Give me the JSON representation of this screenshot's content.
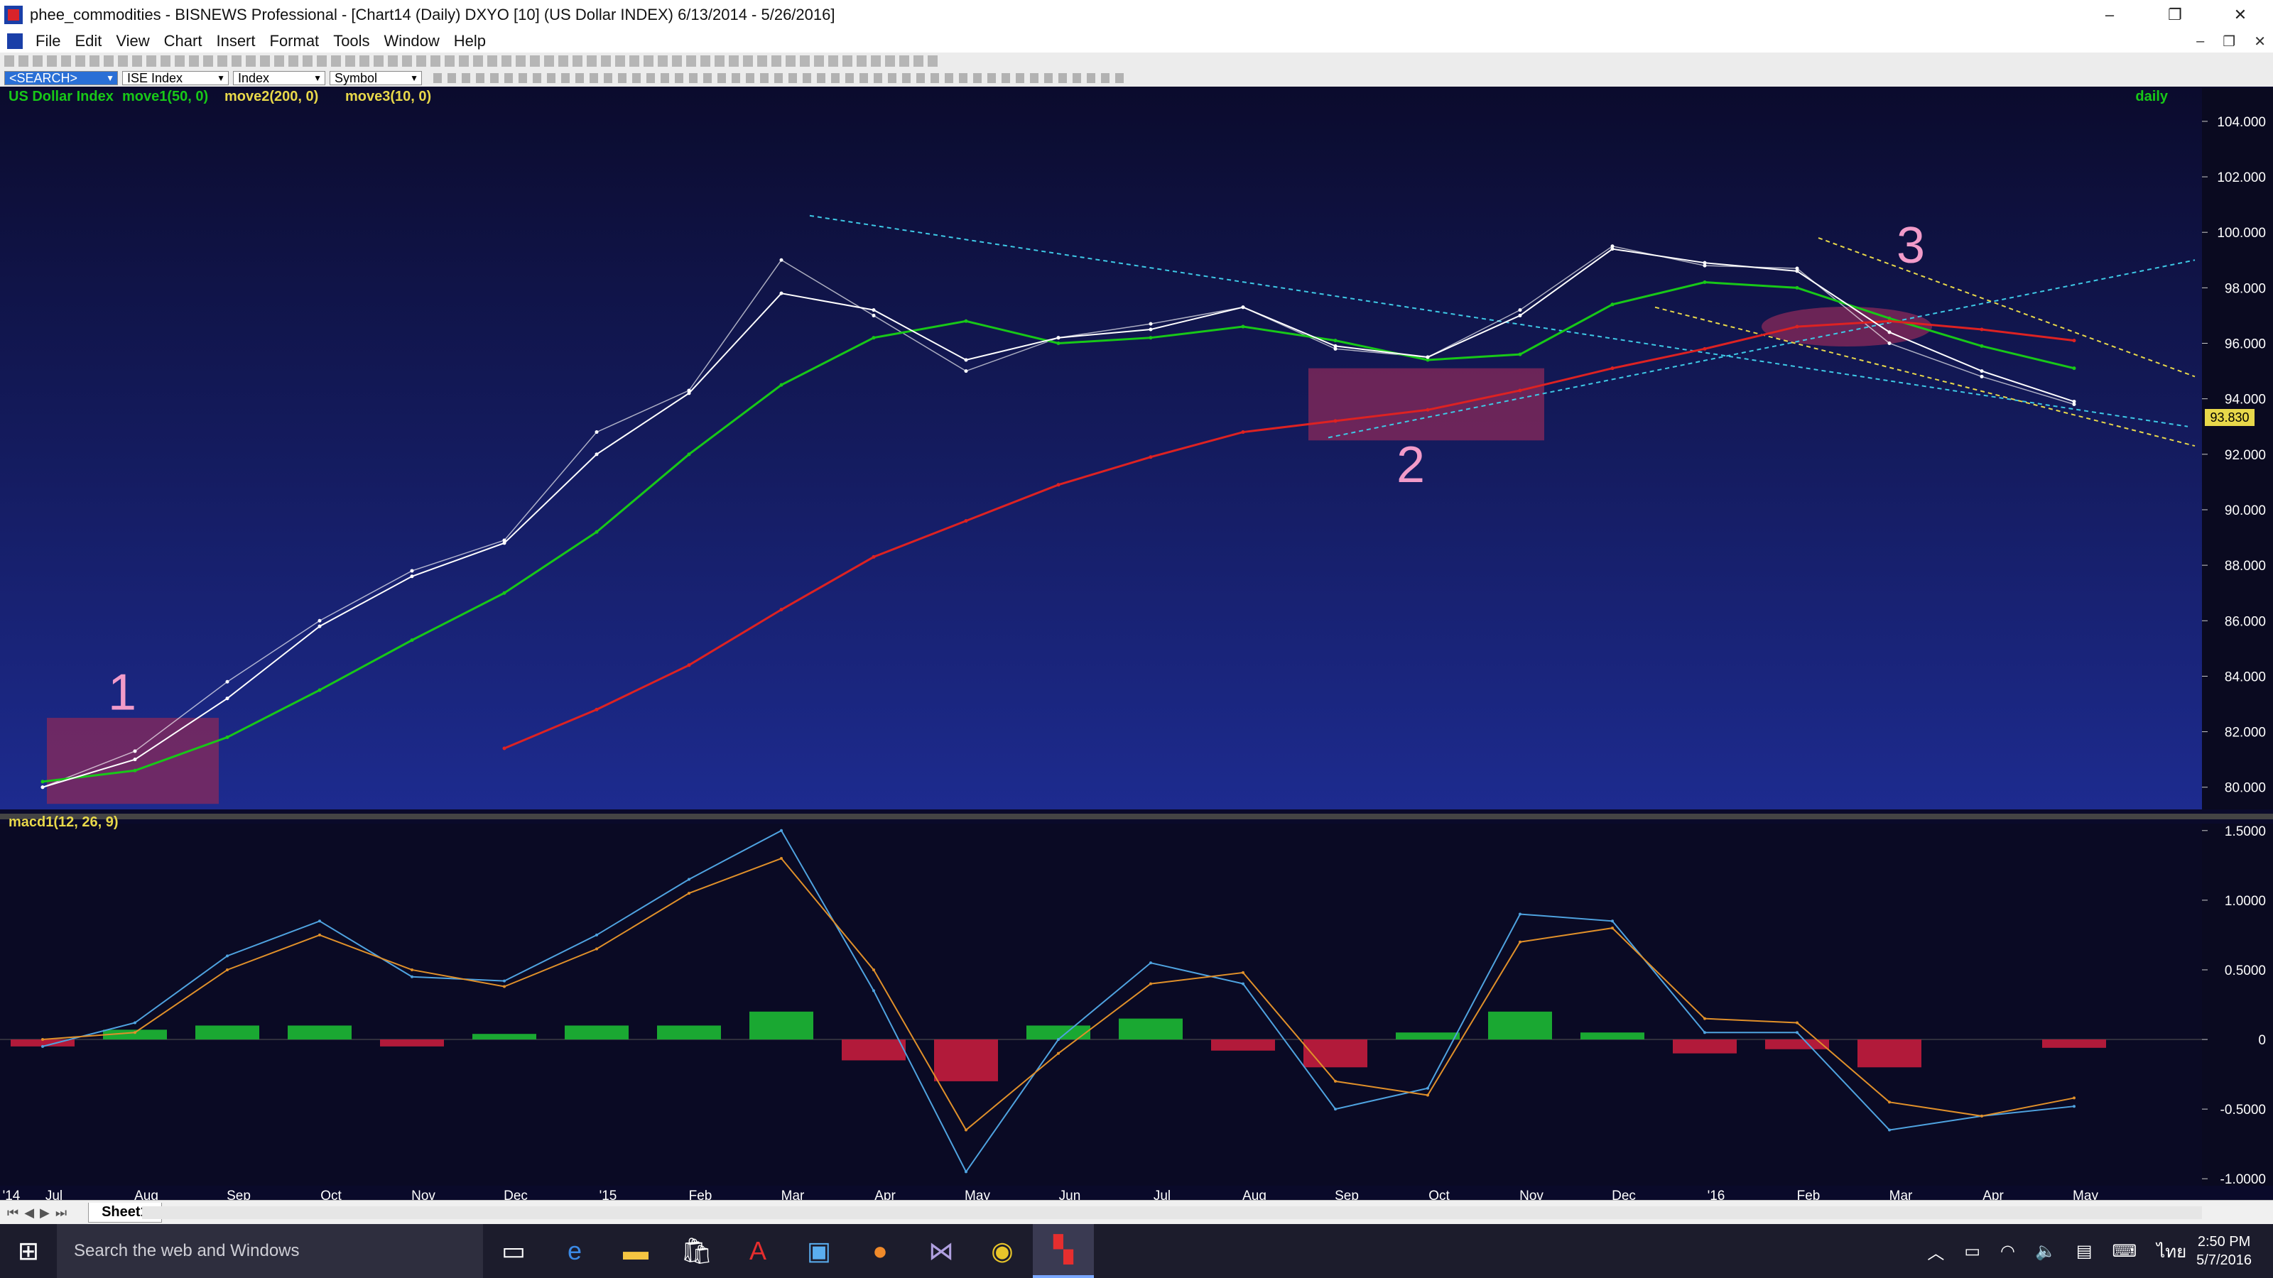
{
  "window": {
    "title": "phee_commodities - BISNEWS Professional - [Chart14 (Daily)  DXYO [10] (US Dollar INDEX) 6/13/2014 - 5/26/2016]",
    "minimize": "–",
    "restore": "❐",
    "close": "✕"
  },
  "menu": [
    "File",
    "Edit",
    "View",
    "Chart",
    "Insert",
    "Format",
    "Tools",
    "Window",
    "Help"
  ],
  "mdi": {
    "minimize": "–",
    "restore": "❐",
    "close": "✕"
  },
  "selector": {
    "search": "<SEARCH>",
    "type": "ISE Index",
    "kind": "Index",
    "symbol": "Symbol"
  },
  "chart": {
    "legend_name": "US Dollar Index",
    "legend_ma1": "move1(50, 0)",
    "legend_ma2": "move2(200, 0)",
    "legend_ma3": "move3(10, 0)",
    "period": "daily",
    "price_label": "93.830",
    "macd_label": "macd1(12, 26, 9)",
    "annotations": [
      "1",
      "2",
      "3"
    ],
    "colors": {
      "background_top": "#0b0b2d",
      "background_bottom": "#1d2b8f",
      "ma50": "#18c818",
      "ma200": "#dd2222",
      "ma10": "#ffffff",
      "trendline_cyan": "#3ec9e6",
      "trendline_yellow": "#e8d84a",
      "zone": "#8a2a5a",
      "annotation": "#f29bc9",
      "hist_pos": "#1aa832",
      "hist_neg": "#b21a3a",
      "macd_line": "#4fa3e0",
      "signal_line": "#e0902a"
    }
  },
  "chart_data": [
    {
      "type": "line",
      "title": "US Dollar Index",
      "x": [
        "Jul",
        "Aug",
        "Sep",
        "Oct",
        "Nov",
        "Dec",
        "'15",
        "Feb",
        "Mar",
        "Apr",
        "May",
        "Jun",
        "Jul",
        "Aug",
        "Sep",
        "Oct",
        "Nov",
        "Dec",
        "'16",
        "Feb",
        "Mar",
        "Apr",
        "May"
      ],
      "series": [
        {
          "name": "US Dollar Index",
          "values": [
            80.0,
            81.3,
            83.8,
            86.0,
            87.8,
            88.9,
            92.8,
            94.3,
            99.0,
            97.0,
            95.0,
            96.2,
            96.7,
            97.3,
            95.8,
            95.5,
            97.2,
            99.5,
            98.8,
            98.7,
            96.0,
            94.8,
            93.8
          ]
        },
        {
          "name": "move1(50, 0)",
          "values": [
            80.2,
            80.6,
            81.8,
            83.5,
            85.3,
            87.0,
            89.2,
            92.0,
            94.5,
            96.2,
            96.8,
            96.0,
            96.2,
            96.6,
            96.1,
            95.4,
            95.6,
            97.4,
            98.2,
            98.0,
            96.9,
            95.9,
            95.1
          ]
        },
        {
          "name": "move2(200, 0)",
          "values": [
            null,
            null,
            null,
            null,
            null,
            81.4,
            82.8,
            84.4,
            86.4,
            88.3,
            89.6,
            90.9,
            91.9,
            92.8,
            93.2,
            93.6,
            94.3,
            95.1,
            95.8,
            96.6,
            96.8,
            96.5,
            96.1
          ]
        },
        {
          "name": "move3(10, 0)",
          "values": [
            80.0,
            81.0,
            83.2,
            85.8,
            87.6,
            88.8,
            92.0,
            94.2,
            97.8,
            97.2,
            95.4,
            96.2,
            96.5,
            97.3,
            95.9,
            95.5,
            97.0,
            99.4,
            98.9,
            98.6,
            96.4,
            95.0,
            93.9
          ]
        }
      ],
      "ylim": [
        79.2,
        105.2
      ],
      "yticks": [
        "80.000",
        "82.000",
        "84.000",
        "86.000",
        "88.000",
        "90.000",
        "92.000",
        "94.000",
        "96.000",
        "98.000",
        "100.000",
        "102.000",
        "104.000"
      ],
      "last_value": 93.83,
      "annotations": [
        "1",
        "2",
        "3"
      ],
      "grid": false
    },
    {
      "type": "line",
      "title": "macd1(12, 26, 9)",
      "x": [
        "Jul",
        "Aug",
        "Sep",
        "Oct",
        "Nov",
        "Dec",
        "'15",
        "Feb",
        "Mar",
        "Apr",
        "May",
        "Jun",
        "Jul",
        "Aug",
        "Sep",
        "Oct",
        "Nov",
        "Dec",
        "'16",
        "Feb",
        "Mar",
        "Apr",
        "May"
      ],
      "series": [
        {
          "name": "macd",
          "values": [
            -0.05,
            0.12,
            0.6,
            0.85,
            0.45,
            0.42,
            0.75,
            1.15,
            1.5,
            0.35,
            -0.95,
            0.0,
            0.55,
            0.4,
            -0.5,
            -0.35,
            0.9,
            0.85,
            0.05,
            0.05,
            -0.65,
            -0.55,
            -0.48
          ]
        },
        {
          "name": "signal",
          "values": [
            0.0,
            0.05,
            0.5,
            0.75,
            0.5,
            0.38,
            0.65,
            1.05,
            1.3,
            0.5,
            -0.65,
            -0.1,
            0.4,
            0.48,
            -0.3,
            -0.4,
            0.7,
            0.8,
            0.15,
            0.12,
            -0.45,
            -0.55,
            -0.42
          ]
        },
        {
          "name": "histogram",
          "values": [
            -0.05,
            0.07,
            0.1,
            0.1,
            -0.05,
            0.04,
            0.1,
            0.1,
            0.2,
            -0.15,
            -0.3,
            0.1,
            0.15,
            -0.08,
            -0.2,
            0.05,
            0.2,
            0.05,
            -0.1,
            -0.07,
            -0.2,
            0.0,
            -0.06
          ]
        }
      ],
      "ylim": [
        -1.05,
        1.55
      ],
      "yticks": [
        "1.5000",
        "1.0000",
        "0.5000",
        "0",
        "-0.5000",
        "-1.0000"
      ],
      "grid": false
    }
  ],
  "xaxis_labels": [
    "'14",
    "Jul",
    "Aug",
    "Sep",
    "Oct",
    "Nov",
    "Dec",
    "'15",
    "Feb",
    "Mar",
    "Apr",
    "May",
    "Jun",
    "Jul",
    "Aug",
    "Sep",
    "Oct",
    "Nov",
    "Dec",
    "'16",
    "Feb",
    "Mar",
    "Apr",
    "May"
  ],
  "sheet_tab": "Sheet1",
  "taskbar": {
    "search_placeholder": "Search the web and Windows",
    "lang": "ไทย",
    "time": "2:50 PM",
    "date": "5/7/2016"
  }
}
